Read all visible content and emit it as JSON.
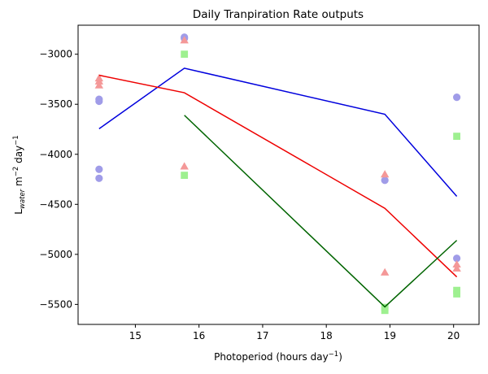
{
  "chart_data": {
    "type": "scatter",
    "title": "Daily Tranpiration Rate outputs",
    "xlabel": {
      "base": "Photoperiod (hours day",
      "sup": "−1",
      "close": ")"
    },
    "ylabel": {
      "L": "L",
      "sub": "water",
      "mid": " m",
      "sup1": "−2",
      "day": " day",
      "sup2": "−1"
    },
    "xlim": [
      14.1,
      20.4
    ],
    "ylim": [
      -5700,
      -2710
    ],
    "xticks": [
      15,
      16,
      17,
      18,
      19,
      20
    ],
    "yticks": [
      -5500,
      -5000,
      -4500,
      -4000,
      -3500,
      -3000
    ],
    "ytick_labels": [
      "−5500",
      "−5000",
      "−4500",
      "−4000",
      "−3500",
      "−3000"
    ],
    "xtick_labels": [
      "15",
      "16",
      "17",
      "18",
      "19",
      "20"
    ],
    "series": [
      {
        "marker": "circle",
        "line_color": "#0000dd",
        "point_color": "#a09ce8",
        "points": [
          [
            14.43,
            -3450
          ],
          [
            14.43,
            -3470
          ],
          [
            14.43,
            -4150
          ],
          [
            14.43,
            -4240
          ],
          [
            15.77,
            -2830
          ],
          [
            15.77,
            -2840
          ],
          [
            18.92,
            -4260
          ],
          [
            20.05,
            -3430
          ],
          [
            20.05,
            -5040
          ]
        ],
        "line": [
          [
            14.43,
            -3745
          ],
          [
            15.77,
            -3140
          ],
          [
            18.92,
            -3600
          ],
          [
            20.05,
            -4420
          ]
        ]
      },
      {
        "marker": "triangle",
        "line_color": "#ee0000",
        "point_color": "#f49898",
        "points": [
          [
            14.43,
            -3240
          ],
          [
            14.43,
            -3270
          ],
          [
            14.43,
            -3310
          ],
          [
            15.77,
            -2860
          ],
          [
            15.77,
            -4120
          ],
          [
            18.92,
            -4200
          ],
          [
            18.92,
            -5180
          ],
          [
            20.05,
            -5100
          ],
          [
            20.05,
            -5140
          ]
        ],
        "line": [
          [
            14.43,
            -3210
          ],
          [
            15.77,
            -3385
          ],
          [
            18.92,
            -4540
          ],
          [
            20.05,
            -5225
          ]
        ]
      },
      {
        "marker": "square",
        "line_color": "#006400",
        "point_color": "#9ef090",
        "points": [
          [
            15.77,
            -3000
          ],
          [
            15.77,
            -4210
          ],
          [
            18.92,
            -5530
          ],
          [
            18.92,
            -5560
          ],
          [
            20.05,
            -3820
          ],
          [
            20.05,
            -5360
          ],
          [
            20.05,
            -5395
          ]
        ],
        "line": [
          [
            15.77,
            -3610
          ],
          [
            18.92,
            -5525
          ],
          [
            20.05,
            -4860
          ]
        ]
      }
    ]
  }
}
